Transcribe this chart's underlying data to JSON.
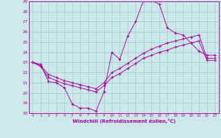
{
  "xlabel": "Windchill (Refroidissement éolien,°C)",
  "xlim": [
    -0.5,
    23.5
  ],
  "ylim": [
    18,
    29
  ],
  "xticks": [
    0,
    1,
    2,
    3,
    4,
    5,
    6,
    7,
    8,
    9,
    10,
    11,
    12,
    13,
    14,
    15,
    16,
    17,
    18,
    19,
    20,
    21,
    22,
    23
  ],
  "yticks": [
    18,
    19,
    20,
    21,
    22,
    23,
    24,
    25,
    26,
    27,
    28,
    29
  ],
  "background_color": "#cce8e8",
  "line_color": "#aa00aa",
  "grid_color": "#99cccc",
  "lines": [
    {
      "x": [
        0,
        1,
        2,
        3,
        4,
        5,
        6,
        7,
        8,
        9,
        10,
        11,
        12,
        13,
        14,
        15,
        16,
        17,
        18,
        19,
        20,
        21,
        22,
        23
      ],
      "y": [
        23,
        22.8,
        21.1,
        21.0,
        20.5,
        18.9,
        18.5,
        18.5,
        18.2,
        20.1,
        24.0,
        23.3,
        25.6,
        27.0,
        29.1,
        29.1,
        28.7,
        26.4,
        25.9,
        25.7,
        24.9,
        24.1,
        23.7,
        23.7
      ]
    },
    {
      "x": [
        0,
        1,
        2,
        3,
        4,
        5,
        6,
        7,
        8,
        9,
        10,
        11,
        12,
        13,
        14,
        15,
        16,
        17,
        18,
        19,
        20,
        21,
        22,
        23
      ],
      "y": [
        23,
        22.7,
        21.8,
        21.5,
        21.2,
        21.0,
        20.8,
        20.6,
        20.4,
        21.0,
        22.0,
        22.4,
        22.9,
        23.4,
        23.9,
        24.3,
        24.6,
        24.9,
        25.1,
        25.3,
        25.5,
        25.7,
        23.4,
        23.4
      ]
    },
    {
      "x": [
        0,
        1,
        2,
        3,
        4,
        5,
        6,
        7,
        8,
        9,
        10,
        11,
        12,
        13,
        14,
        15,
        16,
        17,
        18,
        19,
        20,
        21,
        22,
        23
      ],
      "y": [
        23,
        22.6,
        21.5,
        21.2,
        20.9,
        20.7,
        20.5,
        20.3,
        20.1,
        20.7,
        21.5,
        21.9,
        22.4,
        22.9,
        23.4,
        23.7,
        24.0,
        24.2,
        24.5,
        24.7,
        24.9,
        25.1,
        23.2,
        23.2
      ]
    }
  ]
}
